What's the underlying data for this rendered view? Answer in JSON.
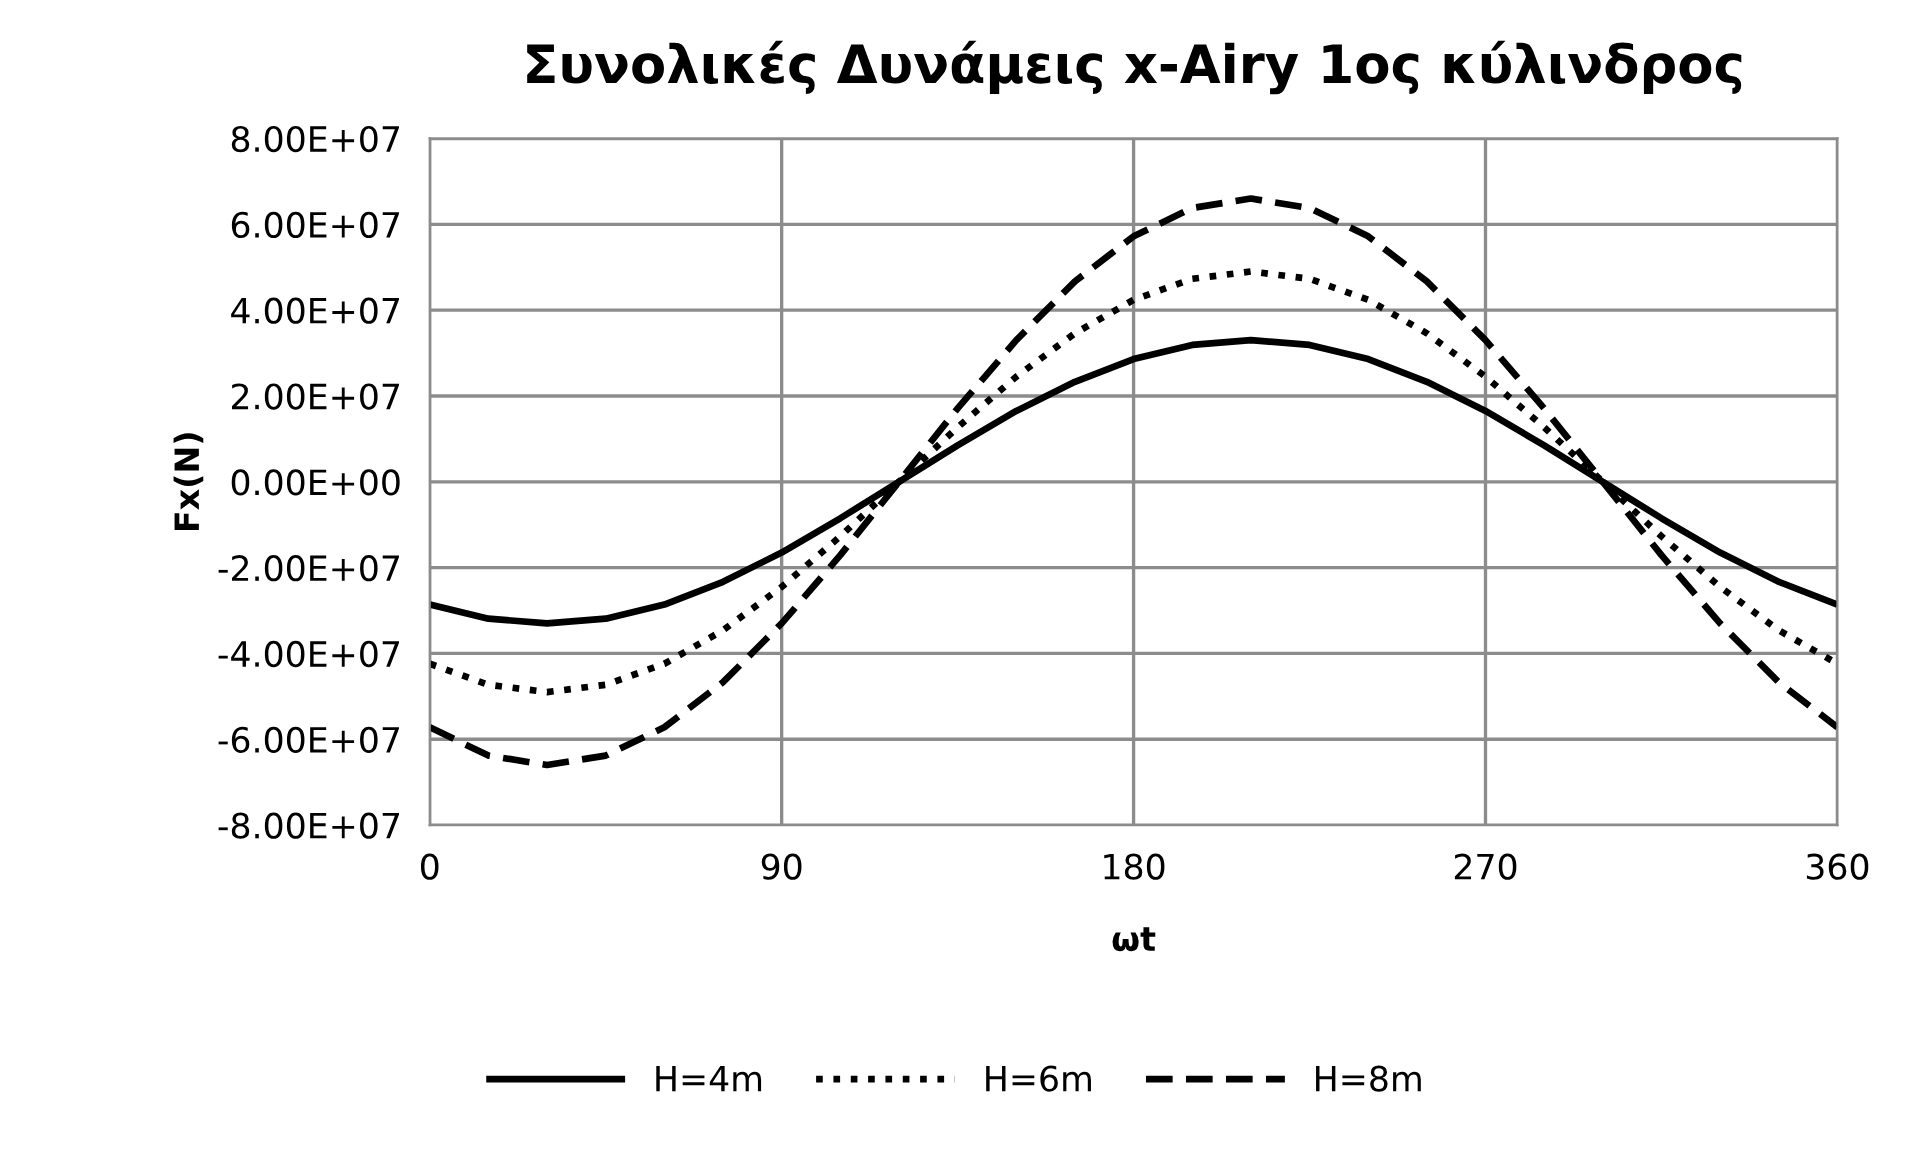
{
  "chart_data": {
    "type": "line",
    "title": "Συνολικές Δυνάμεις x-Airy 1ος κύλινδρος",
    "xlabel": "ωt",
    "ylabel": "Fx(N)",
    "x": [
      0,
      15,
      30,
      45,
      60,
      75,
      90,
      105,
      120,
      135,
      150,
      165,
      180,
      195,
      210,
      225,
      240,
      255,
      270,
      285,
      300,
      315,
      330,
      345,
      360
    ],
    "series": [
      {
        "name": "H=4m",
        "color": "#000000",
        "line_style": "solid",
        "values": [
          -28600000.0,
          -31900000.0,
          -33000000.0,
          -31900000.0,
          -28600000.0,
          -23300000.0,
          -16500000.0,
          -8500000.0,
          0,
          8500000.0,
          16500000.0,
          23300000.0,
          28600000.0,
          31900000.0,
          33000000.0,
          31900000.0,
          28600000.0,
          23300000.0,
          16500000.0,
          8500000.0,
          0,
          -8500000.0,
          -16500000.0,
          -23300000.0,
          -28600000.0
        ]
      },
      {
        "name": "H=6m",
        "color": "#000000",
        "line_style": "dotted",
        "values": [
          -42400000.0,
          -47300000.0,
          -49000000.0,
          -47300000.0,
          -42400000.0,
          -34600000.0,
          -24500000.0,
          -12700000.0,
          0,
          12700000.0,
          24500000.0,
          34600000.0,
          42400000.0,
          47300000.0,
          49000000.0,
          47300000.0,
          42400000.0,
          34600000.0,
          24500000.0,
          12700000.0,
          0,
          -12700000.0,
          -24500000.0,
          -34600000.0,
          -42400000.0
        ]
      },
      {
        "name": "H=8m",
        "color": "#000000",
        "line_style": "dashed",
        "values": [
          -57200000.0,
          -63800000.0,
          -66000000.0,
          -63800000.0,
          -57200000.0,
          -46700000.0,
          -33000000.0,
          -17100000.0,
          0,
          17100000.0,
          33000000.0,
          46700000.0,
          57200000.0,
          63800000.0,
          66000000.0,
          63800000.0,
          57200000.0,
          46700000.0,
          33000000.0,
          17100000.0,
          0,
          -17100000.0,
          -33000000.0,
          -46700000.0,
          -57200000.0
        ]
      }
    ],
    "xlim": [
      0,
      360
    ],
    "xticks": [
      0,
      90,
      180,
      270,
      360
    ],
    "ylim": [
      -80000000.0,
      80000000.0
    ],
    "yticks": [
      {
        "value": -80000000.0,
        "label": "-8.00E+07"
      },
      {
        "value": -60000000.0,
        "label": "-6.00E+07"
      },
      {
        "value": -40000000.0,
        "label": "-4.00E+07"
      },
      {
        "value": -20000000.0,
        "label": "-2.00E+07"
      },
      {
        "value": 0,
        "label": "0.00E+00"
      },
      {
        "value": 20000000.0,
        "label": "2.00E+07"
      },
      {
        "value": 40000000.0,
        "label": "4.00E+07"
      },
      {
        "value": 60000000.0,
        "label": "6.00E+07"
      },
      {
        "value": 80000000.0,
        "label": "8.00E+07"
      }
    ],
    "grid": true,
    "legend": "bottom",
    "marker": "none"
  }
}
